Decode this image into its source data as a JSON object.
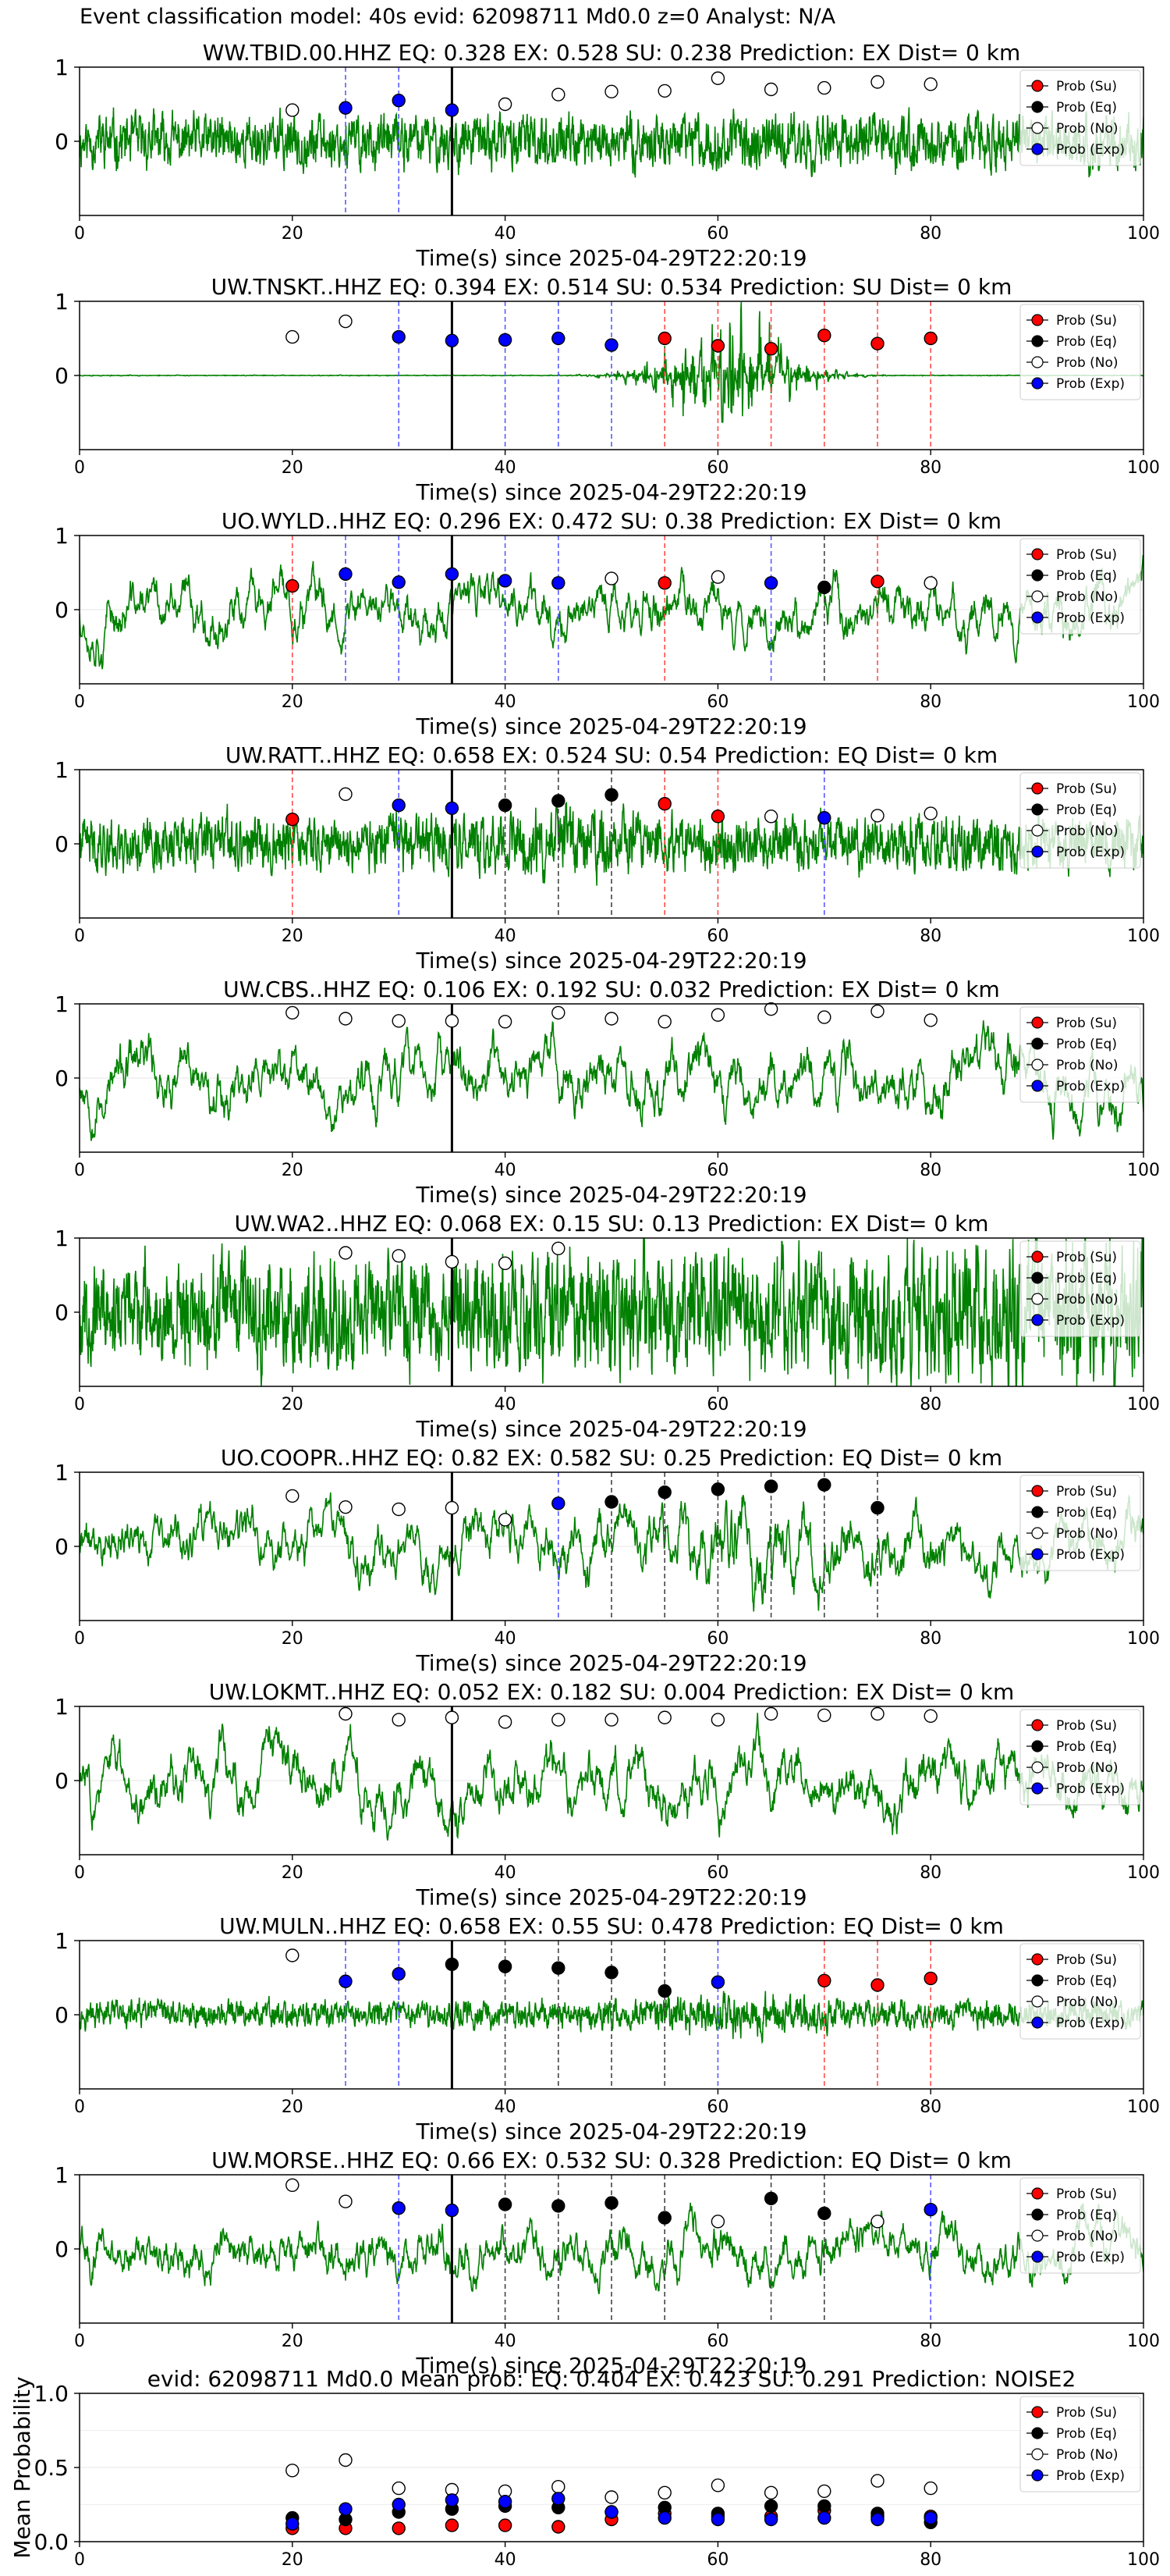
{
  "figure_title": "Event classification model: 40s evid: 62098711 Md0.0 z=0 Analyst: N/A",
  "legend_labels": [
    "Prob (Su)",
    "Prob (Eq)",
    "Prob (No)",
    "Prob (Exp)"
  ],
  "colors": {
    "su": "#ff0000",
    "eq": "#000000",
    "no": "#ffffff",
    "exp": "#0000ff",
    "trace": "#008000"
  },
  "chart_data": [
    {
      "type": "line",
      "title": "WW.TBID.00.HHZ   EQ: 0.328  EX: 0.528  SU: 0.238   Prediction: EX    Dist= 0 km",
      "xlabel": "Time(s) since 2025-04-29T22:20:19",
      "xlim": [
        0,
        100
      ],
      "ylim": [
        -1,
        1
      ],
      "yticks": [
        {
          "v": 1,
          "l": "1"
        },
        {
          "v": 0,
          "l": "0"
        }
      ],
      "xticks": [
        0,
        20,
        40,
        60,
        80,
        100
      ],
      "pick_time": 35,
      "trace": {
        "amp": 0.3,
        "env": "flat",
        "style": "noisy",
        "seed": 11
      },
      "points": [
        {
          "x": 20,
          "y": 0.42,
          "c": "no"
        },
        {
          "x": 25,
          "y": 0.45,
          "c": "exp"
        },
        {
          "x": 30,
          "y": 0.55,
          "c": "exp"
        },
        {
          "x": 35,
          "y": 0.42,
          "c": "exp"
        },
        {
          "x": 40,
          "y": 0.5,
          "c": "no"
        },
        {
          "x": 45,
          "y": 0.63,
          "c": "no"
        },
        {
          "x": 50,
          "y": 0.67,
          "c": "no"
        },
        {
          "x": 55,
          "y": 0.68,
          "c": "no"
        },
        {
          "x": 60,
          "y": 0.85,
          "c": "no"
        },
        {
          "x": 65,
          "y": 0.7,
          "c": "no"
        },
        {
          "x": 70,
          "y": 0.72,
          "c": "no"
        },
        {
          "x": 75,
          "y": 0.8,
          "c": "no"
        },
        {
          "x": 80,
          "y": 0.77,
          "c": "no"
        }
      ]
    },
    {
      "type": "line",
      "title": "UW.TNSKT..HHZ   EQ: 0.394  EX: 0.514  SU: 0.534   Prediction: SU    Dist= 0 km",
      "xlabel": "Time(s) since 2025-04-29T22:20:19",
      "xlim": [
        0,
        100
      ],
      "ylim": [
        -1,
        1
      ],
      "yticks": [
        {
          "v": 1,
          "l": "1"
        },
        {
          "v": 0,
          "l": "0"
        }
      ],
      "xticks": [
        0,
        20,
        40,
        60,
        80,
        100
      ],
      "pick_time": 35,
      "trace": {
        "amp": 0.05,
        "env": "burst",
        "style": "noisy",
        "seed": 23
      },
      "points": [
        {
          "x": 20,
          "y": 0.52,
          "c": "no"
        },
        {
          "x": 25,
          "y": 0.73,
          "c": "no"
        },
        {
          "x": 30,
          "y": 0.52,
          "c": "exp"
        },
        {
          "x": 35,
          "y": 0.47,
          "c": "exp"
        },
        {
          "x": 40,
          "y": 0.48,
          "c": "exp"
        },
        {
          "x": 45,
          "y": 0.5,
          "c": "exp"
        },
        {
          "x": 50,
          "y": 0.41,
          "c": "exp"
        },
        {
          "x": 55,
          "y": 0.5,
          "c": "su"
        },
        {
          "x": 60,
          "y": 0.4,
          "c": "su"
        },
        {
          "x": 65,
          "y": 0.36,
          "c": "su"
        },
        {
          "x": 70,
          "y": 0.54,
          "c": "su"
        },
        {
          "x": 75,
          "y": 0.43,
          "c": "su"
        },
        {
          "x": 80,
          "y": 0.5,
          "c": "su"
        }
      ]
    },
    {
      "type": "line",
      "title": "UO.WYLD..HHZ   EQ: 0.296  EX: 0.472  SU: 0.38   Prediction: EX    Dist= 0 km",
      "xlabel": "Time(s) since 2025-04-29T22:20:19",
      "xlim": [
        0,
        100
      ],
      "ylim": [
        -1,
        1
      ],
      "yticks": [
        {
          "v": 1,
          "l": "1"
        },
        {
          "v": 0,
          "l": "0"
        }
      ],
      "xticks": [
        0,
        20,
        40,
        60,
        80,
        100
      ],
      "pick_time": 35,
      "trace": {
        "amp": 0.55,
        "env": "flat",
        "style": "smooth",
        "seed": 37
      },
      "points": [
        {
          "x": 20,
          "y": 0.32,
          "c": "su"
        },
        {
          "x": 25,
          "y": 0.48,
          "c": "exp"
        },
        {
          "x": 30,
          "y": 0.37,
          "c": "exp"
        },
        {
          "x": 35,
          "y": 0.48,
          "c": "exp"
        },
        {
          "x": 40,
          "y": 0.39,
          "c": "exp"
        },
        {
          "x": 45,
          "y": 0.36,
          "c": "exp"
        },
        {
          "x": 50,
          "y": 0.42,
          "c": "no"
        },
        {
          "x": 55,
          "y": 0.36,
          "c": "su"
        },
        {
          "x": 60,
          "y": 0.44,
          "c": "no"
        },
        {
          "x": 65,
          "y": 0.36,
          "c": "exp"
        },
        {
          "x": 70,
          "y": 0.3,
          "c": "eq"
        },
        {
          "x": 75,
          "y": 0.38,
          "c": "su"
        },
        {
          "x": 80,
          "y": 0.36,
          "c": "no"
        }
      ]
    },
    {
      "type": "line",
      "title": "UW.RATT..HHZ   EQ: 0.658  EX: 0.524  SU: 0.54   Prediction: EQ    Dist= 0 km",
      "xlabel": "Time(s) since 2025-04-29T22:20:19",
      "xlim": [
        0,
        100
      ],
      "ylim": [
        -1,
        1
      ],
      "yticks": [
        {
          "v": 1,
          "l": "1"
        },
        {
          "v": 0,
          "l": "0"
        }
      ],
      "xticks": [
        0,
        20,
        40,
        60,
        80,
        100
      ],
      "pick_time": 35,
      "trace": {
        "amp": 0.3,
        "env": "mild",
        "style": "noisy",
        "seed": 41
      },
      "points": [
        {
          "x": 20,
          "y": 0.33,
          "c": "su"
        },
        {
          "x": 25,
          "y": 0.67,
          "c": "no"
        },
        {
          "x": 30,
          "y": 0.52,
          "c": "exp"
        },
        {
          "x": 35,
          "y": 0.48,
          "c": "exp"
        },
        {
          "x": 40,
          "y": 0.52,
          "c": "eq"
        },
        {
          "x": 45,
          "y": 0.58,
          "c": "eq"
        },
        {
          "x": 50,
          "y": 0.66,
          "c": "eq"
        },
        {
          "x": 55,
          "y": 0.54,
          "c": "su"
        },
        {
          "x": 60,
          "y": 0.37,
          "c": "su"
        },
        {
          "x": 65,
          "y": 0.37,
          "c": "no"
        },
        {
          "x": 70,
          "y": 0.35,
          "c": "exp"
        },
        {
          "x": 75,
          "y": 0.38,
          "c": "no"
        },
        {
          "x": 80,
          "y": 0.41,
          "c": "no"
        }
      ]
    },
    {
      "type": "line",
      "title": "UW.CBS..HHZ   EQ: 0.106  EX: 0.192  SU: 0.032   Prediction: EX    Dist= 0 km",
      "xlabel": "Time(s) since 2025-04-29T22:20:19",
      "xlim": [
        0,
        100
      ],
      "ylim": [
        -1,
        1
      ],
      "yticks": [
        {
          "v": 1,
          "l": "1"
        },
        {
          "v": 0,
          "l": "0"
        }
      ],
      "xticks": [
        0,
        20,
        40,
        60,
        80,
        100
      ],
      "pick_time": 35,
      "trace": {
        "amp": 0.6,
        "env": "flat",
        "style": "smooth",
        "seed": 53
      },
      "points": [
        {
          "x": 20,
          "y": 0.88,
          "c": "no"
        },
        {
          "x": 25,
          "y": 0.8,
          "c": "no"
        },
        {
          "x": 30,
          "y": 0.77,
          "c": "no"
        },
        {
          "x": 35,
          "y": 0.77,
          "c": "no"
        },
        {
          "x": 40,
          "y": 0.76,
          "c": "no"
        },
        {
          "x": 45,
          "y": 0.88,
          "c": "no"
        },
        {
          "x": 50,
          "y": 0.8,
          "c": "no"
        },
        {
          "x": 55,
          "y": 0.76,
          "c": "no"
        },
        {
          "x": 60,
          "y": 0.85,
          "c": "no"
        },
        {
          "x": 65,
          "y": 0.93,
          "c": "no"
        },
        {
          "x": 70,
          "y": 0.82,
          "c": "no"
        },
        {
          "x": 75,
          "y": 0.9,
          "c": "no"
        },
        {
          "x": 80,
          "y": 0.78,
          "c": "no"
        }
      ]
    },
    {
      "type": "line",
      "title": "UW.WA2..HHZ   EQ: 0.068  EX: 0.15  SU: 0.13   Prediction: EX    Dist= 0 km",
      "xlabel": "Time(s) since 2025-04-29T22:20:19",
      "xlim": [
        0,
        100
      ],
      "ylim": [
        -1,
        1
      ],
      "yticks": [
        {
          "v": 1,
          "l": "1"
        },
        {
          "v": 0,
          "l": "0"
        }
      ],
      "xticks": [
        0,
        20,
        40,
        60,
        80,
        100
      ],
      "pick_time": 35,
      "trace": {
        "amp": 0.7,
        "env": "ramp",
        "style": "noisy",
        "seed": 67
      },
      "points": [
        {
          "x": 25,
          "y": 0.8,
          "c": "no"
        },
        {
          "x": 30,
          "y": 0.76,
          "c": "no"
        },
        {
          "x": 35,
          "y": 0.68,
          "c": "no"
        },
        {
          "x": 40,
          "y": 0.66,
          "c": "no"
        },
        {
          "x": 45,
          "y": 0.86,
          "c": "no"
        }
      ]
    },
    {
      "type": "line",
      "title": "UO.COOPR..HHZ   EQ: 0.82  EX: 0.582  SU: 0.25   Prediction: EQ    Dist= 0 km",
      "xlabel": "Time(s) since 2025-04-29T22:20:19",
      "xlim": [
        0,
        100
      ],
      "ylim": [
        -1,
        1
      ],
      "yticks": [
        {
          "v": 1,
          "l": "1"
        },
        {
          "v": 0,
          "l": "0"
        }
      ],
      "xticks": [
        0,
        20,
        40,
        60,
        80,
        100
      ],
      "pick_time": 35,
      "trace": {
        "amp": 0.55,
        "env": "mid",
        "style": "smooth",
        "seed": 71
      },
      "points": [
        {
          "x": 20,
          "y": 0.68,
          "c": "no"
        },
        {
          "x": 25,
          "y": 0.53,
          "c": "no"
        },
        {
          "x": 30,
          "y": 0.5,
          "c": "no"
        },
        {
          "x": 35,
          "y": 0.52,
          "c": "no"
        },
        {
          "x": 40,
          "y": 0.36,
          "c": "no"
        },
        {
          "x": 45,
          "y": 0.58,
          "c": "exp"
        },
        {
          "x": 50,
          "y": 0.6,
          "c": "eq"
        },
        {
          "x": 55,
          "y": 0.73,
          "c": "eq"
        },
        {
          "x": 60,
          "y": 0.77,
          "c": "eq"
        },
        {
          "x": 65,
          "y": 0.81,
          "c": "eq"
        },
        {
          "x": 70,
          "y": 0.83,
          "c": "eq"
        },
        {
          "x": 75,
          "y": 0.52,
          "c": "eq"
        }
      ]
    },
    {
      "type": "line",
      "title": "UW.LOKMT..HHZ   EQ: 0.052  EX: 0.182  SU: 0.004   Prediction: EX    Dist= 0 km",
      "xlabel": "Time(s) since 2025-04-29T22:20:19",
      "xlim": [
        0,
        100
      ],
      "ylim": [
        -1,
        1
      ],
      "yticks": [
        {
          "v": 1,
          "l": "1"
        },
        {
          "v": 0,
          "l": "0"
        }
      ],
      "xticks": [
        0,
        20,
        40,
        60,
        80,
        100
      ],
      "pick_time": 35,
      "trace": {
        "amp": 0.6,
        "env": "flat",
        "style": "smooth",
        "seed": 83
      },
      "points": [
        {
          "x": 25,
          "y": 0.9,
          "c": "no"
        },
        {
          "x": 30,
          "y": 0.82,
          "c": "no"
        },
        {
          "x": 35,
          "y": 0.85,
          "c": "no"
        },
        {
          "x": 40,
          "y": 0.79,
          "c": "no"
        },
        {
          "x": 45,
          "y": 0.82,
          "c": "no"
        },
        {
          "x": 50,
          "y": 0.82,
          "c": "no"
        },
        {
          "x": 55,
          "y": 0.85,
          "c": "no"
        },
        {
          "x": 60,
          "y": 0.82,
          "c": "no"
        },
        {
          "x": 65,
          "y": 0.9,
          "c": "no"
        },
        {
          "x": 70,
          "y": 0.88,
          "c": "no"
        },
        {
          "x": 75,
          "y": 0.9,
          "c": "no"
        },
        {
          "x": 80,
          "y": 0.87,
          "c": "no"
        }
      ]
    },
    {
      "type": "line",
      "title": "UW.MULN..HHZ   EQ: 0.658  EX: 0.55  SU: 0.478   Prediction: EQ    Dist= 0 km",
      "xlabel": "Time(s) since 2025-04-29T22:20:19",
      "xlim": [
        0,
        100
      ],
      "ylim": [
        -1,
        1
      ],
      "yticks": [
        {
          "v": 1,
          "l": "1"
        },
        {
          "v": 0,
          "l": "0"
        }
      ],
      "xticks": [
        0,
        20,
        40,
        60,
        80,
        100
      ],
      "pick_time": 35,
      "trace": {
        "amp": 0.15,
        "env": "mid",
        "style": "noisy",
        "seed": 97
      },
      "points": [
        {
          "x": 20,
          "y": 0.8,
          "c": "no"
        },
        {
          "x": 25,
          "y": 0.45,
          "c": "exp"
        },
        {
          "x": 30,
          "y": 0.55,
          "c": "exp"
        },
        {
          "x": 35,
          "y": 0.68,
          "c": "eq"
        },
        {
          "x": 40,
          "y": 0.65,
          "c": "eq"
        },
        {
          "x": 45,
          "y": 0.63,
          "c": "eq"
        },
        {
          "x": 50,
          "y": 0.57,
          "c": "eq"
        },
        {
          "x": 55,
          "y": 0.32,
          "c": "eq"
        },
        {
          "x": 60,
          "y": 0.44,
          "c": "exp"
        },
        {
          "x": 70,
          "y": 0.46,
          "c": "su"
        },
        {
          "x": 75,
          "y": 0.4,
          "c": "su"
        },
        {
          "x": 80,
          "y": 0.49,
          "c": "su"
        }
      ]
    },
    {
      "type": "line",
      "title": "UW.MORSE..HHZ   EQ: 0.66  EX: 0.532  SU: 0.328   Prediction: EQ    Dist= 0 km",
      "xlabel": "Time(s) since 2025-04-29T22:20:19",
      "xlim": [
        0,
        100
      ],
      "ylim": [
        -1,
        1
      ],
      "yticks": [
        {
          "v": 1,
          "l": "1"
        },
        {
          "v": 0,
          "l": "0"
        }
      ],
      "xticks": [
        0,
        20,
        40,
        60,
        80,
        100
      ],
      "pick_time": 35,
      "trace": {
        "amp": 0.5,
        "env": "flat",
        "style": "smooth",
        "seed": 101
      },
      "points": [
        {
          "x": 20,
          "y": 0.86,
          "c": "no"
        },
        {
          "x": 25,
          "y": 0.64,
          "c": "no"
        },
        {
          "x": 30,
          "y": 0.55,
          "c": "exp"
        },
        {
          "x": 35,
          "y": 0.52,
          "c": "exp"
        },
        {
          "x": 40,
          "y": 0.6,
          "c": "eq"
        },
        {
          "x": 45,
          "y": 0.58,
          "c": "eq"
        },
        {
          "x": 50,
          "y": 0.62,
          "c": "eq"
        },
        {
          "x": 55,
          "y": 0.42,
          "c": "eq"
        },
        {
          "x": 60,
          "y": 0.37,
          "c": "no"
        },
        {
          "x": 65,
          "y": 0.68,
          "c": "eq"
        },
        {
          "x": 70,
          "y": 0.48,
          "c": "eq"
        },
        {
          "x": 75,
          "y": 0.37,
          "c": "no"
        },
        {
          "x": 80,
          "y": 0.53,
          "c": "exp"
        }
      ]
    },
    {
      "type": "scatter",
      "title": "evid: 62098711   Md0.0    Mean prob:    EQ: 0.404   EX: 0.423   SU: 0.291    Prediction: NOISE2",
      "xlabel": "",
      "ylabel": "Mean Probability",
      "xlim": [
        0,
        100
      ],
      "ylim": [
        0,
        1
      ],
      "yticks": [
        {
          "v": 0,
          "l": "0.0"
        },
        {
          "v": 0.5,
          "l": "0.5"
        },
        {
          "v": 1,
          "l": "1.0"
        }
      ],
      "xticks": [
        0,
        20,
        40,
        60,
        80,
        100
      ],
      "series": [
        {
          "name": "Prob (Su)",
          "c": "su",
          "x": [
            20,
            25,
            30,
            35,
            40,
            45,
            50,
            55,
            60,
            65,
            70,
            75,
            80
          ],
          "y": [
            0.09,
            0.09,
            0.09,
            0.11,
            0.11,
            0.1,
            0.15,
            0.19,
            0.17,
            0.17,
            0.21,
            0.17,
            0.17
          ]
        },
        {
          "name": "Prob (Eq)",
          "c": "eq",
          "x": [
            20,
            25,
            30,
            35,
            40,
            45,
            50,
            55,
            60,
            65,
            70,
            75,
            80
          ],
          "y": [
            0.16,
            0.15,
            0.2,
            0.22,
            0.24,
            0.23,
            0.2,
            0.23,
            0.19,
            0.24,
            0.24,
            0.19,
            0.13
          ]
        },
        {
          "name": "Prob (No)",
          "c": "no",
          "x": [
            20,
            25,
            30,
            35,
            40,
            45,
            50,
            55,
            60,
            65,
            70,
            75,
            80
          ],
          "y": [
            0.48,
            0.55,
            0.36,
            0.35,
            0.34,
            0.37,
            0.3,
            0.33,
            0.38,
            0.33,
            0.34,
            0.41,
            0.36
          ]
        },
        {
          "name": "Prob (Exp)",
          "c": "exp",
          "x": [
            20,
            25,
            30,
            35,
            40,
            45,
            50,
            55,
            60,
            65,
            70,
            75,
            80
          ],
          "y": [
            0.12,
            0.22,
            0.25,
            0.28,
            0.27,
            0.29,
            0.2,
            0.16,
            0.15,
            0.15,
            0.16,
            0.15,
            0.16
          ]
        }
      ]
    }
  ]
}
